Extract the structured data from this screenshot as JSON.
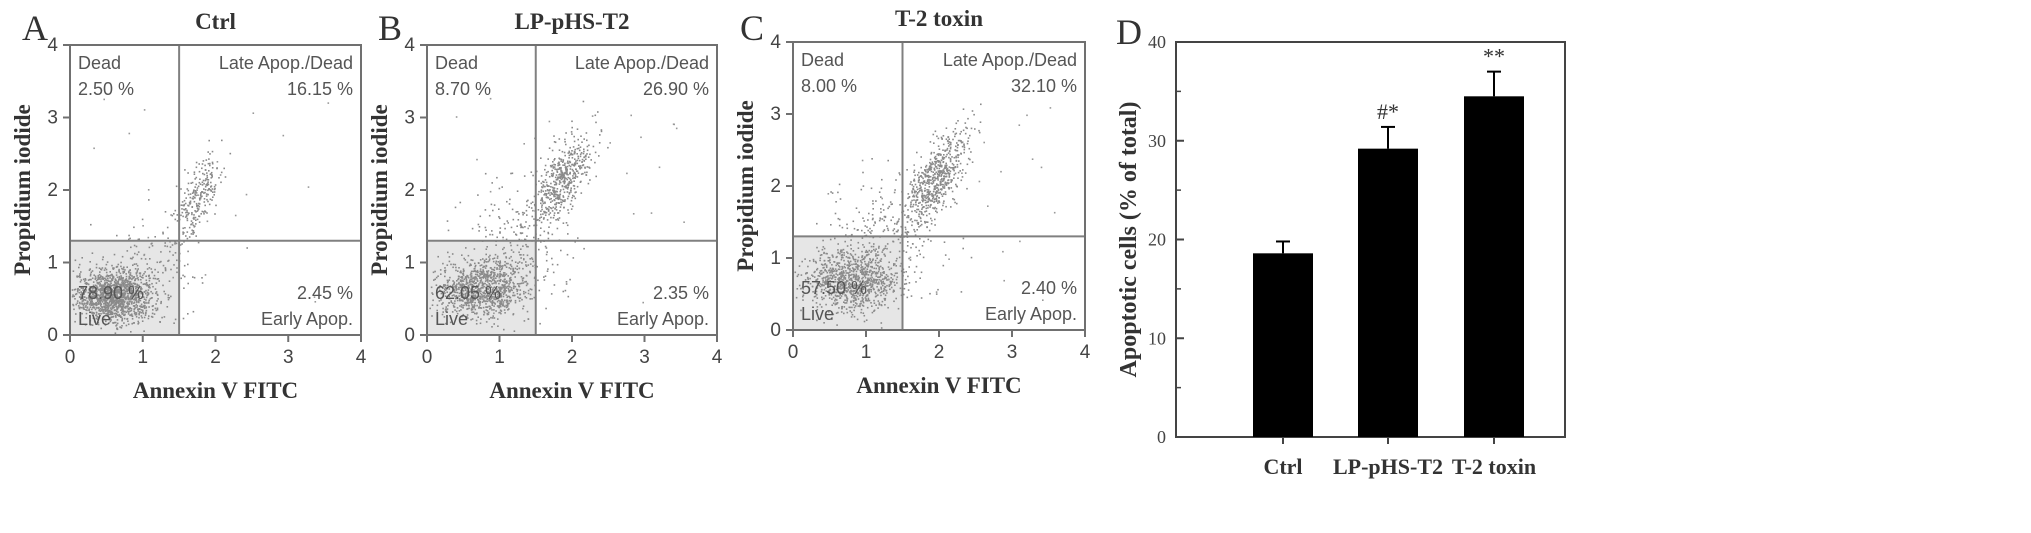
{
  "chart_data": [
    {
      "panel": "A",
      "type": "scatter",
      "title": "Ctrl",
      "xlabel": "Annexin V FITC",
      "ylabel": "Propidium iodide",
      "xlim": [
        0,
        4
      ],
      "ylim": [
        0,
        4
      ],
      "xticks": [
        "0",
        "1",
        "2",
        "3",
        "4"
      ],
      "yticks": [
        "0",
        "1",
        "2",
        "3",
        "4"
      ],
      "gate": {
        "x": 1.5,
        "y": 1.3
      },
      "quadrants": {
        "dead": {
          "label": "Dead",
          "value": "2.50 %"
        },
        "late": {
          "label": "Late Apop./Dead",
          "value": "16.15 %"
        },
        "live": {
          "label": "Live",
          "value": "78.90 %"
        },
        "early": {
          "label": "Early Apop.",
          "value": "2.45 %"
        }
      },
      "clusters": [
        {
          "cx": 0.6,
          "cy": 0.55,
          "sx": 0.28,
          "sy": 0.18,
          "n": 1400
        },
        {
          "cx": 1.75,
          "cy": 1.9,
          "sx": 0.2,
          "sy": 0.28,
          "n": 260
        },
        {
          "cx": 1.1,
          "cy": 1.0,
          "sx": 0.35,
          "sy": 0.3,
          "n": 120
        }
      ],
      "grid": false,
      "legend": "none"
    },
    {
      "panel": "B",
      "type": "scatter",
      "title": "LP-pHS-T2",
      "xlabel": "Annexin V FITC",
      "ylabel": "Propidium iodide",
      "xlim": [
        0,
        4
      ],
      "ylim": [
        0,
        4
      ],
      "xticks": [
        "0",
        "1",
        "2",
        "3",
        "4"
      ],
      "yticks": [
        "0",
        "1",
        "2",
        "3",
        "4"
      ],
      "gate": {
        "x": 1.5,
        "y": 1.3
      },
      "quadrants": {
        "dead": {
          "label": "Dead",
          "value": "8.70 %"
        },
        "late": {
          "label": "Late Apop./Dead",
          "value": "26.90 %"
        },
        "live": {
          "label": "Live",
          "value": "62.05 %"
        },
        "early": {
          "label": "Early Apop.",
          "value": "2.35 %"
        }
      },
      "clusters": [
        {
          "cx": 0.75,
          "cy": 0.65,
          "sx": 0.32,
          "sy": 0.2,
          "n": 1000
        },
        {
          "cx": 1.85,
          "cy": 2.15,
          "sx": 0.25,
          "sy": 0.3,
          "n": 520
        },
        {
          "cx": 1.2,
          "cy": 1.3,
          "sx": 0.35,
          "sy": 0.4,
          "n": 220
        }
      ],
      "grid": false,
      "legend": "none"
    },
    {
      "panel": "C",
      "type": "scatter",
      "title": "T-2 toxin",
      "xlabel": "Annexin V FITC",
      "ylabel": "Propidium iodide",
      "xlim": [
        0,
        4
      ],
      "ylim": [
        0,
        4
      ],
      "xticks": [
        "0",
        "1",
        "2",
        "3",
        "4"
      ],
      "yticks": [
        "0",
        "1",
        "2",
        "3",
        "4"
      ],
      "gate": {
        "x": 1.5,
        "y": 1.3
      },
      "quadrants": {
        "dead": {
          "label": "Dead",
          "value": "8.00 %"
        },
        "late": {
          "label": "Late Apop./Dead",
          "value": "32.10 %"
        },
        "live": {
          "label": "Live",
          "value": "57.50 %"
        },
        "early": {
          "label": "Early Apop.",
          "value": "2.40 %"
        }
      },
      "clusters": [
        {
          "cx": 0.8,
          "cy": 0.7,
          "sx": 0.32,
          "sy": 0.22,
          "n": 950
        },
        {
          "cx": 1.95,
          "cy": 2.1,
          "sx": 0.25,
          "sy": 0.3,
          "n": 620
        },
        {
          "cx": 1.25,
          "cy": 1.35,
          "sx": 0.4,
          "sy": 0.45,
          "n": 240
        }
      ],
      "grid": false,
      "legend": "none"
    },
    {
      "panel": "D",
      "type": "bar",
      "title": "",
      "xlabel": "",
      "ylabel": "Apoptotic cells (% of total)",
      "categories": [
        "Ctrl",
        "LP-pHS-T2",
        "T-2 toxin"
      ],
      "values": [
        18.6,
        29.2,
        34.5
      ],
      "errors": [
        1.2,
        2.2,
        2.5
      ],
      "annotations": [
        "",
        "#*",
        "**"
      ],
      "ylim": [
        0,
        40
      ],
      "yticks": [
        "0",
        "10",
        "20",
        "30",
        "40"
      ],
      "bar_color": "#000000",
      "grid": false,
      "legend": "none"
    }
  ]
}
